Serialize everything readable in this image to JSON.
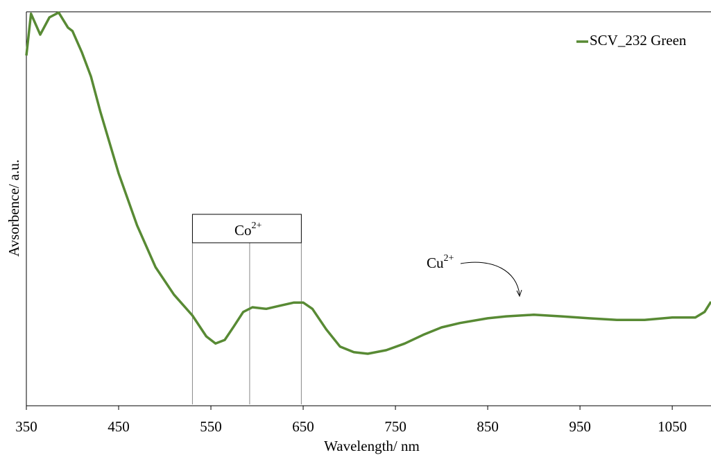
{
  "chart_data": {
    "type": "line",
    "x_label": "Wavelength/ nm",
    "y_label": "Avsorbence/ a.u.",
    "x": [
      350,
      355,
      365,
      375,
      385,
      395,
      400,
      410,
      420,
      430,
      440,
      450,
      470,
      490,
      510,
      530,
      545,
      555,
      565,
      575,
      585,
      595,
      610,
      625,
      640,
      650,
      660,
      675,
      690,
      705,
      720,
      740,
      760,
      780,
      800,
      820,
      850,
      870,
      900,
      930,
      960,
      990,
      1020,
      1050,
      1075,
      1085,
      1092
    ],
    "series": [
      {
        "name": "SCV_232 Green",
        "color": "#588a34",
        "values": [
          0.889,
          0.995,
          0.942,
          0.986,
          0.998,
          0.96,
          0.951,
          0.898,
          0.836,
          0.748,
          0.669,
          0.59,
          0.458,
          0.352,
          0.282,
          0.229,
          0.176,
          0.158,
          0.167,
          0.202,
          0.238,
          0.25,
          0.246,
          0.254,
          0.262,
          0.262,
          0.246,
          0.194,
          0.15,
          0.136,
          0.132,
          0.141,
          0.158,
          0.18,
          0.199,
          0.21,
          0.222,
          0.227,
          0.231,
          0.227,
          0.222,
          0.218,
          0.218,
          0.224,
          0.224,
          0.238,
          0.264
        ]
      }
    ],
    "xlim": [
      350,
      1092
    ],
    "ylim": [
      0,
      1
    ],
    "xticks": [
      350,
      450,
      550,
      650,
      750,
      850,
      950,
      1050
    ],
    "legend": "top-right",
    "co_annotation": {
      "text": "Co",
      "superscript": "2+",
      "lines": [
        530,
        592,
        648
      ]
    },
    "cu_annotation": {
      "text": "Cu",
      "superscript": "2+"
    }
  }
}
